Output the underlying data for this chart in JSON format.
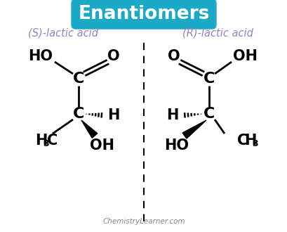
{
  "title": "Enantiomers",
  "title_bg": "#1aaac8",
  "title_color": "white",
  "subtitle_left": "(S)-lactic acid",
  "subtitle_right": "(R)-lactic acid",
  "subtitle_color": "#9b7ec8",
  "watermark": "ChemistryLearner.com",
  "bg_color": "white",
  "bond_color": "black",
  "atom_color": "black",
  "figsize": [
    4.1,
    3.3
  ],
  "dpi": 100
}
